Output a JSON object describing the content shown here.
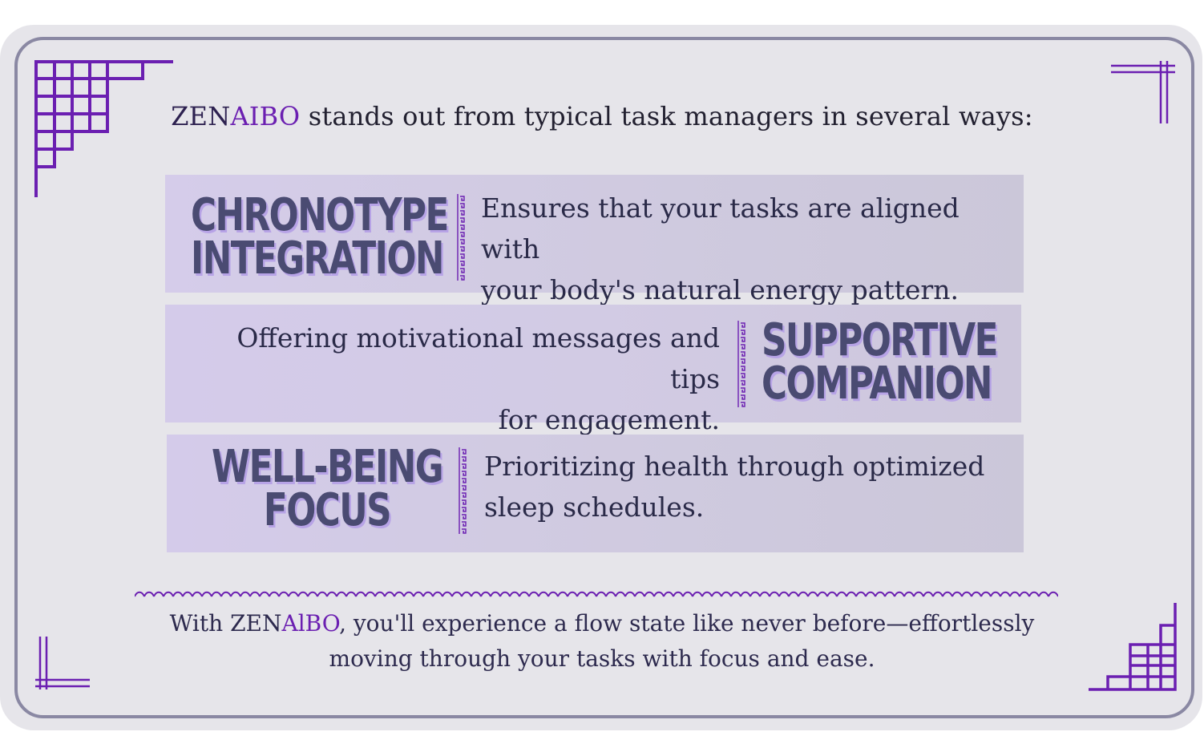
{
  "colors": {
    "accent": "#6b1fb1",
    "label_text": "#4a4b72",
    "label_shadow": "#b7a3e6",
    "frame": "#8a88a3",
    "background": "#e6e5ea"
  },
  "headline": {
    "brand_part1": "ZEN",
    "brand_part2": "AIBO",
    "text": " stands out from typical task managers in several ways:"
  },
  "features": [
    {
      "label_line1": "CHRONOTYPE",
      "label_line2": "INTEGRATION",
      "description_line1": "Ensures that your tasks are aligned with",
      "description_line2": "your body's natural energy pattern."
    },
    {
      "label_line1": "SUPPORTIVE",
      "label_line2": "COMPANION",
      "description_line1": "Offering motivational messages and tips",
      "description_line2": "for engagement."
    },
    {
      "label_line1": "WELL-BEING",
      "label_line2": "FOCUS",
      "description_line1": "Prioritizing health through optimized",
      "description_line2": "sleep schedules."
    }
  ],
  "footer": {
    "prefix": "With ",
    "brand_part1": "ZEN",
    "brand_part2": "AlBO",
    "line1_rest": ", you'll experience a flow state like never before—effortlessly",
    "line2": "moving through your tasks with focus and ease."
  },
  "decorations": {
    "corner_top_left": "greek-lattice-corner-icon",
    "corner_top_right": "double-line-corner-icon",
    "corner_bottom_left": "double-line-corner-icon",
    "corner_bottom_right": "greek-lattice-corner-icon",
    "divider": "wave-pattern-divider",
    "separator": "greek-key-separator"
  }
}
